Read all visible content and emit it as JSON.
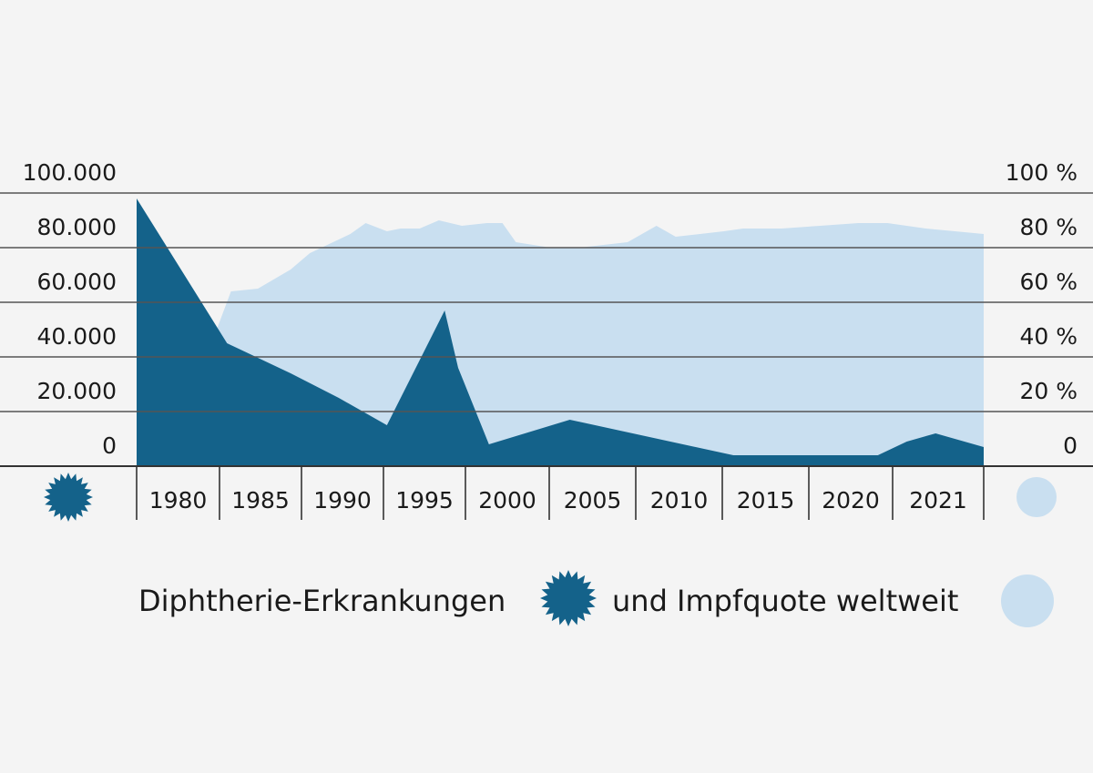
{
  "colors": {
    "background": "#f4f4f4",
    "cases": "#14628a",
    "coverage": "#c9dff0",
    "gridline": "#555555",
    "text": "#1a1a1a"
  },
  "legend": {
    "text_cases": "Diphtherie-Erkrankungen",
    "text_coverage": "und Impfquote weltweit",
    "icon_cases": "starburst-icon",
    "icon_coverage": "circle-icon"
  },
  "chart_data": {
    "type": "area",
    "categories": [
      "1980",
      "1985",
      "1990",
      "1995",
      "2000",
      "2005",
      "2010",
      "2015",
      "2020",
      "2021"
    ],
    "x_range": [
      1978.5,
      2022.5
    ],
    "y_left": {
      "ticks": [
        "0",
        "20.000",
        "40.000",
        "60.000",
        "80.000",
        "100.000"
      ],
      "ylim": [
        0,
        100000
      ]
    },
    "y_right": {
      "ticks": [
        "0",
        "20 %",
        "40 %",
        "60 %",
        "80 %",
        "100 %"
      ],
      "ylim": [
        0,
        100
      ]
    },
    "grid": true,
    "series": [
      {
        "axis": "right",
        "x": [
          1978.5,
          1981.5,
          1982.5,
          1983.4,
          1984.8,
          1986.5,
          1987.5,
          1988.4,
          1989.6,
          1990.4,
          1991.5,
          1992.2,
          1993.2,
          1994.2,
          1995.4,
          1996.7,
          1997.5,
          1998.2,
          2000.0,
          2001.5,
          2004.0,
          2005.5,
          2006.5,
          2009.0,
          2010.0,
          2012.0,
          2014.0,
          2016.0,
          2017.5,
          2019.5,
          2022.5
        ],
        "values": [
          30,
          35,
          47,
          64,
          65,
          72,
          78,
          81,
          85,
          89,
          86,
          87,
          87,
          90,
          88,
          89,
          89,
          82,
          80,
          80,
          82,
          88,
          84,
          86,
          87,
          87,
          88,
          89,
          89,
          87,
          85
        ]
      },
      {
        "x": [
          1978.5,
          1983.2,
          1986.5,
          1989.0,
          1991.5,
          1994.5,
          1995.2,
          1996.8,
          2001.0,
          2009.5,
          2011.5,
          2014.0,
          2017.0,
          2018.5,
          2020.0,
          2022.5
        ],
        "values": [
          98000,
          45000,
          34000,
          25000,
          15000,
          57000,
          36000,
          8000,
          17000,
          4000,
          4000,
          4000,
          4000,
          9000,
          12000,
          7000
        ]
      }
    ]
  }
}
